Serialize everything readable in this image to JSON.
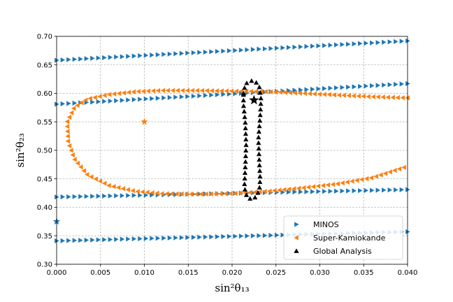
{
  "chart_data": {
    "type": "scatter",
    "xlabel": "sin²θ₁₃",
    "ylabel": "sin²θ₂₃",
    "xlim": [
      0.0,
      0.04
    ],
    "ylim": [
      0.3,
      0.7
    ],
    "grid": true,
    "legend_position": "bottom-right",
    "x_ticks": [
      "0.000",
      "0.005",
      "0.010",
      "0.015",
      "0.020",
      "0.025",
      "0.030",
      "0.035",
      "0.040"
    ],
    "y_ticks": [
      "0.30",
      "0.35",
      "0.40",
      "0.45",
      "0.50",
      "0.55",
      "0.60",
      "0.65",
      "0.70"
    ],
    "series": [
      {
        "name": "MINOS",
        "color": "#1f77b4",
        "marker": "triangle-right",
        "curves": [
          {
            "x": [
              0.0,
              0.04
            ],
            "y": [
              0.658,
              0.692
            ],
            "count": 60
          },
          {
            "x": [
              0.0,
              0.04
            ],
            "y": [
              0.581,
              0.617
            ],
            "count": 60
          },
          {
            "x": [
              0.0,
              0.04
            ],
            "y": [
              0.418,
              0.431
            ],
            "count": 60
          },
          {
            "x": [
              0.0,
              0.04
            ],
            "y": [
              0.341,
              0.357
            ],
            "count": 60
          }
        ],
        "best_fit": {
          "x": 0.0,
          "y": 0.375
        }
      },
      {
        "name": "Super-Kamiokande",
        "color": "#ff7f0e",
        "marker": "triangle-left",
        "contour": [
          [
            0.04,
            0.592
          ],
          [
            0.036,
            0.594
          ],
          [
            0.032,
            0.597
          ],
          [
            0.028,
            0.6
          ],
          [
            0.024,
            0.603
          ],
          [
            0.02,
            0.604
          ],
          [
            0.016,
            0.605
          ],
          [
            0.012,
            0.605
          ],
          [
            0.009,
            0.603
          ],
          [
            0.006,
            0.598
          ],
          [
            0.0035,
            0.59
          ],
          [
            0.002,
            0.575
          ],
          [
            0.0012,
            0.55
          ],
          [
            0.0013,
            0.515
          ],
          [
            0.002,
            0.485
          ],
          [
            0.0035,
            0.457
          ],
          [
            0.006,
            0.438
          ],
          [
            0.009,
            0.428
          ],
          [
            0.012,
            0.424
          ],
          [
            0.016,
            0.423
          ],
          [
            0.02,
            0.424
          ],
          [
            0.024,
            0.428
          ],
          [
            0.028,
            0.434
          ],
          [
            0.032,
            0.441
          ],
          [
            0.036,
            0.452
          ],
          [
            0.04,
            0.472
          ]
        ],
        "best_fit": {
          "x": 0.01,
          "y": 0.55
        }
      },
      {
        "name": "Global Analysis",
        "color": "#000000",
        "marker": "triangle-up",
        "contour": [
          [
            0.0213,
            0.6
          ],
          [
            0.0215,
            0.616
          ],
          [
            0.022,
            0.622
          ],
          [
            0.0226,
            0.622
          ],
          [
            0.0231,
            0.612
          ],
          [
            0.0233,
            0.59
          ],
          [
            0.0232,
            0.56
          ],
          [
            0.023,
            0.52
          ],
          [
            0.0231,
            0.48
          ],
          [
            0.0232,
            0.45
          ],
          [
            0.0231,
            0.43
          ],
          [
            0.0227,
            0.418
          ],
          [
            0.0222,
            0.414
          ],
          [
            0.0217,
            0.418
          ],
          [
            0.0214,
            0.435
          ],
          [
            0.0215,
            0.47
          ],
          [
            0.0216,
            0.51
          ],
          [
            0.0215,
            0.55
          ],
          [
            0.0213,
            0.58
          ],
          [
            0.0213,
            0.6
          ]
        ],
        "best_fit": {
          "x": 0.0225,
          "y": 0.588
        }
      }
    ]
  }
}
